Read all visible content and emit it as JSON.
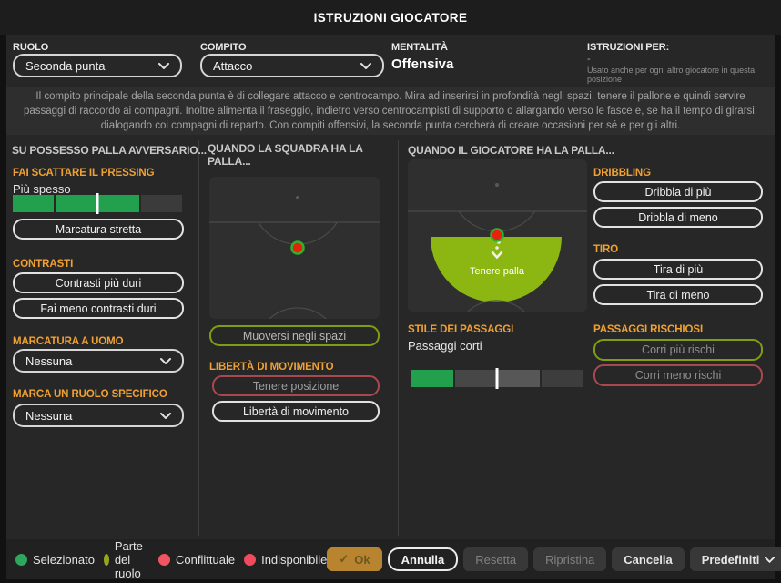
{
  "title": "ISTRUZIONI GIOCATORE",
  "header": {
    "role": {
      "label": "RUOLO",
      "value": "Seconda punta"
    },
    "duty": {
      "label": "COMPITO",
      "value": "Attacco"
    },
    "mentality": {
      "label": "MENTALITÀ",
      "value": "Offensiva"
    },
    "instructions_for": {
      "label": "ISTRUZIONI PER:",
      "value": "-",
      "note": "Usato anche per ogni altro giocatore in questa posizione"
    }
  },
  "description": "Il compito principale della seconda punta è di collegare attacco e centrocampo. Mira ad inserirsi in profondità negli spazi, tenere il pallone e quindi servire passaggi di raccordo ai compagni. Inoltre alimenta il fraseggio, indietro verso centrocampisti di supporto o allargando verso le fasce e, se ha il tempo di girarsi, dialogando coi compagni di reparto. Con compiti offensivi, la seconda punta cercherà di creare occasioni per sé e per gli altri.",
  "out_of_possession": {
    "header": "SU POSSESSO PALLA AVVERSARIO...",
    "pressing": {
      "label": "FAI SCATTARE IL PRESSING",
      "value": "Più spesso"
    },
    "tight_marking_button": "Marcatura stretta",
    "tackling": {
      "label": "CONTRASTI",
      "buttons": [
        "Contrasti più duri",
        "Fai meno contrasti duri"
      ]
    },
    "man_marking": {
      "label": "MARCATURA A UOMO",
      "value": "Nessuna"
    },
    "mark_role": {
      "label": "MARCA UN RUOLO SPECIFICO",
      "value": "Nessuna"
    }
  },
  "team_in_possession": {
    "header": "QUANDO LA SQUADRA HA LA PALLA...",
    "move_button": "Muoversi negli spazi",
    "freedom": {
      "label": "LIBERTÀ DI MOVIMENTO",
      "buttons": [
        "Tenere posizione",
        "Libertà di movimento"
      ]
    }
  },
  "player_in_possession": {
    "header": "QUANDO IL GIOCATORE HA LA PALLA...",
    "pitch_label": "Tenere palla",
    "dribbling": {
      "label": "DRIBBLING",
      "buttons": [
        "Dribbla di più",
        "Dribbla di meno"
      ]
    },
    "shooting": {
      "label": "TIRO",
      "buttons": [
        "Tira di più",
        "Tira di meno"
      ]
    },
    "passing_style": {
      "label": "STILE DEI PASSAGGI",
      "value": "Passaggi corti"
    },
    "risky_passes": {
      "label": "PASSAGGI RISCHIOSI",
      "buttons": [
        "Corri più rischi",
        "Corri meno rischi"
      ]
    }
  },
  "sliders": {
    "pressing": {
      "segments": [
        "#23a04d",
        "#23a04d",
        "#23a04d",
        "#3b3b3b"
      ],
      "tick": 0.5
    },
    "passing": {
      "segments": [
        "#23a04d",
        "#474747",
        "#575757",
        "#3d3d3d"
      ],
      "tick": 0.5
    }
  },
  "legend": [
    {
      "label": "Selezionato",
      "color": "#2ea65c"
    },
    {
      "label": "Parte del ruolo",
      "color": "#97a51e"
    },
    {
      "label": "Conflittuale",
      "color": "#f25562"
    },
    {
      "label": "Indisponibile",
      "color": "#f04a5e"
    }
  ],
  "actions": {
    "ok": "Ok",
    "annulla": "Annulla",
    "resetta": "Resetta",
    "ripristina": "Ripristina",
    "cancella": "Cancella",
    "predefiniti": "Predefiniti"
  },
  "colors": {
    "accent_orange": "#f0a132",
    "slider_green": "#23a04d",
    "hold_zone_green": "#8cb611",
    "player_dot_red": "#e5220e",
    "player_dot_ring": "#2db32a",
    "ok_gold": "#b8842f"
  }
}
